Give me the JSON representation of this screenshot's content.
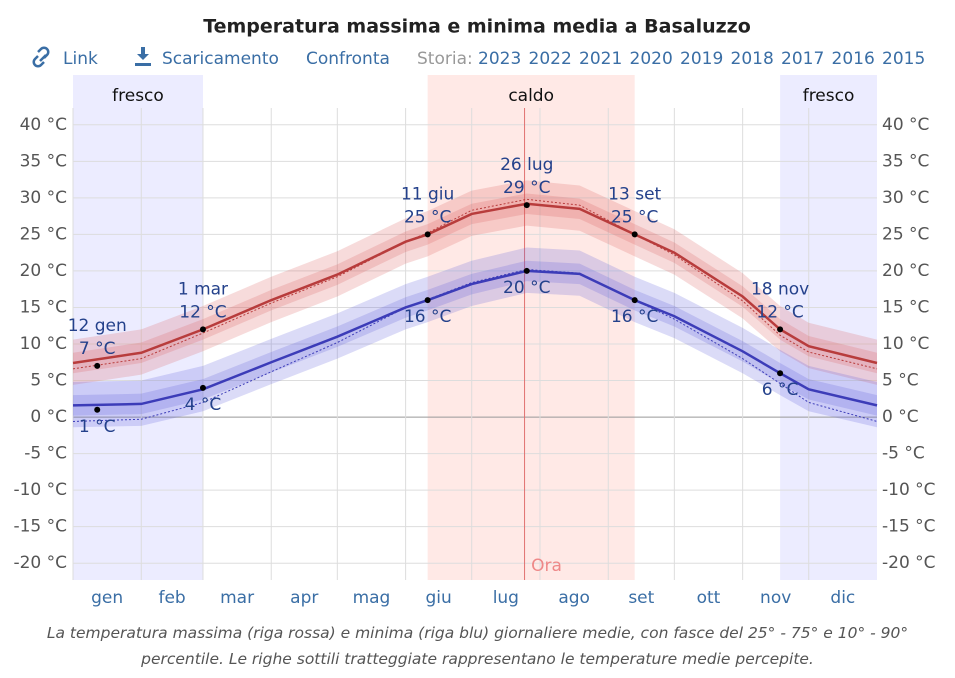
{
  "chart_data": {
    "type": "band-line",
    "title": "Temperatura massima e minima media a Basaluzzo",
    "links": [
      "Link",
      "Scaricamento",
      "Confronta"
    ],
    "history_label": "Storia:",
    "years": [
      "2023",
      "2022",
      "2021",
      "2020",
      "2019",
      "2018",
      "2017",
      "2016",
      "2015"
    ],
    "months": [
      "gen",
      "feb",
      "mar",
      "apr",
      "mag",
      "giu",
      "lug",
      "ago",
      "set",
      "ott",
      "nov",
      "dic"
    ],
    "month_starts": [
      0,
      31,
      59,
      90,
      120,
      151,
      181,
      212,
      243,
      273,
      304,
      334
    ],
    "xlim": [
      0,
      365
    ],
    "ylim": [
      -22.3,
      42.3
    ],
    "yticks": [
      {
        "value": -20,
        "label": "-20 °C"
      },
      {
        "value": -15,
        "label": "-15 °C"
      },
      {
        "value": -10,
        "label": "-10 °C"
      },
      {
        "value": -5,
        "label": "-5 °C"
      },
      {
        "value": 0,
        "label": "0 °C"
      },
      {
        "value": 5,
        "label": "5 °C"
      },
      {
        "value": 10,
        "label": "10 °C"
      },
      {
        "value": 15,
        "label": "15 °C"
      },
      {
        "value": 20,
        "label": "20 °C"
      },
      {
        "value": 25,
        "label": "25 °C"
      },
      {
        "value": 30,
        "label": "30 °C"
      },
      {
        "value": 35,
        "label": "35 °C"
      },
      {
        "value": 40,
        "label": "40 °C"
      }
    ],
    "seasons": [
      {
        "name": "fresco",
        "start": 0,
        "end": 59,
        "color": "rgba(110,110,255,0.13)"
      },
      {
        "name": "caldo",
        "start": 161,
        "end": 255,
        "color": "rgba(255,110,90,0.15)"
      },
      {
        "name": "fresco",
        "start": 321,
        "end": 365,
        "color": "rgba(110,110,255,0.13)"
      }
    ],
    "now": {
      "x": 205,
      "label": "Ora"
    },
    "x": [
      0,
      31,
      59,
      90,
      120,
      151,
      161,
      181,
      206,
      230,
      255,
      273,
      304,
      321,
      334,
      365
    ],
    "series": [
      {
        "color": "#b83c3c",
        "band_color": "rgba(220,90,90,0.22)",
        "values": [
          7.4,
          8.8,
          12,
          16,
          19.5,
          24,
          25,
          27.8,
          29.2,
          28.5,
          25,
          22.5,
          16.5,
          12,
          9.7,
          7.4
        ],
        "p10": [
          4.4,
          5.8,
          9,
          13,
          16.5,
          21,
          22,
          24.8,
          26.2,
          25.5,
          22,
          19.5,
          13.5,
          9,
          6.7,
          4.4
        ],
        "p25": [
          6,
          7.4,
          10.6,
          14.6,
          18.1,
          22.6,
          23.6,
          26.4,
          27.8,
          27.1,
          23.6,
          21.1,
          15.1,
          10.6,
          8.3,
          6
        ],
        "p75": [
          8.8,
          10.2,
          13.4,
          17.4,
          20.9,
          25.4,
          26.4,
          29.2,
          30.6,
          29.9,
          26.4,
          23.9,
          17.9,
          13.4,
          11.1,
          8.8
        ],
        "p90": [
          10.6,
          12,
          15.2,
          19.2,
          22.7,
          27.2,
          28.2,
          31,
          32.4,
          31.7,
          28.2,
          25.7,
          19.7,
          15.2,
          12.9,
          10.6
        ],
        "perceived": [
          6.6,
          8,
          11.5,
          15.6,
          19.2,
          24,
          25.2,
          28.3,
          29.8,
          29,
          25,
          22.2,
          15.9,
          11.2,
          8.9,
          6.6
        ]
      },
      {
        "color": "#3c3cb8",
        "band_color": "rgba(90,90,220,0.22)",
        "values": [
          1.6,
          1.8,
          3.8,
          7.5,
          11,
          15,
          16,
          18.2,
          20,
          19.6,
          16,
          13.8,
          9,
          6,
          3.8,
          1.6
        ],
        "p10": [
          -1.4,
          -1.2,
          0.8,
          4.5,
          8,
          12,
          13,
          15.2,
          17,
          16.6,
          13,
          10.8,
          6,
          3,
          0.8,
          -1.4
        ],
        "p25": [
          0.2,
          0.4,
          2.4,
          6.1,
          9.6,
          13.6,
          14.6,
          16.8,
          18.6,
          18.2,
          14.6,
          12.4,
          7.6,
          4.6,
          2.4,
          0.2
        ],
        "p75": [
          3,
          3.2,
          5.2,
          8.9,
          12.4,
          16.4,
          17.4,
          19.6,
          21.4,
          21,
          17.4,
          15.2,
          10.4,
          7.4,
          5.2,
          3
        ],
        "p90": [
          4.8,
          5,
          7,
          10.7,
          14.2,
          18.2,
          19.2,
          21.4,
          23.2,
          22.8,
          19.2,
          17,
          12.2,
          9.2,
          7,
          4.8
        ],
        "perceived": [
          -0.6,
          -0.3,
          2,
          6.2,
          10.2,
          15,
          16.1,
          18.4,
          20.2,
          19.7,
          16,
          13.4,
          8,
          4.6,
          2,
          -0.6
        ]
      }
    ],
    "annotations": [
      {
        "x": 11,
        "date": "12 gen",
        "max": 7,
        "max_label": "7 °C",
        "min": 1,
        "min_label": "1 °C"
      },
      {
        "x": 59,
        "date": "1 mar",
        "max": 12,
        "max_label": "12 °C",
        "min": 4,
        "min_label": "4 °C"
      },
      {
        "x": 161,
        "date": "11 giu",
        "max": 25,
        "max_label": "25 °C",
        "min": 16,
        "min_label": "16 °C"
      },
      {
        "x": 206,
        "date": "26 lug",
        "max": 29,
        "max_label": "29 °C",
        "min": 20,
        "min_label": "20 °C"
      },
      {
        "x": 255,
        "date": "13 set",
        "max": 25,
        "max_label": "25 °C",
        "min": 16,
        "min_label": "16 °C"
      },
      {
        "x": 321,
        "date": "18 nov",
        "max": 12,
        "max_label": "12 °C",
        "min": 6,
        "min_label": "6 °C"
      }
    ],
    "caption": "La temperatura massima (riga rossa) e minima (riga blu) giornaliere medie, con fasce del 25° - 75° e 10° - 90° percentile. Le righe sottili tratteggiate rappresentano le temperature medie percepite."
  }
}
